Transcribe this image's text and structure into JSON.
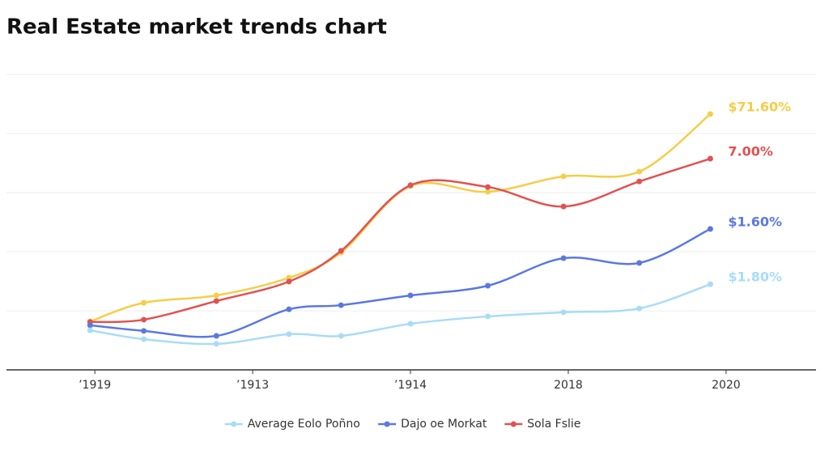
{
  "chart_data": {
    "type": "line",
    "title": "Real Estate market trends chart",
    "x": [
      -0.03,
      0.31,
      0.77,
      1.23,
      1.56,
      2.0,
      2.49,
      2.97,
      3.45,
      3.9
    ],
    "xlim": [
      -0.56,
      4.57
    ],
    "xticks": [
      {
        "value": 0,
        "label": "’1919"
      },
      {
        "value": 1,
        "label": "’1913"
      },
      {
        "value": 2,
        "label": "’1914"
      },
      {
        "value": 3,
        "label": "2018"
      },
      {
        "value": 4,
        "label": "2020"
      }
    ],
    "ylim": [
      0,
      100
    ],
    "yticks": [
      20,
      40,
      60,
      80,
      100
    ],
    "ytick_labels": false,
    "grid": true,
    "legend": "bottom",
    "series": [
      {
        "color": "#f5cd47",
        "end_label": "$71.60%",
        "values": [
          16.4,
          22.7,
          25.2,
          31.2,
          39.7,
          62.2,
          60.3,
          65.5,
          67.1,
          86.6
        ]
      },
      {
        "name": "Sola Fslie",
        "color": "#e05252",
        "end_label": "7.00%",
        "values": [
          16.2,
          17.0,
          23.3,
          29.9,
          40.3,
          62.5,
          61.9,
          55.3,
          63.8,
          71.5
        ]
      },
      {
        "name": "Dajo oe Morkat",
        "color": "#5b78e0",
        "end_label": "$1.60%",
        "values": [
          15.1,
          13.2,
          11.5,
          20.5,
          21.9,
          25.2,
          28.5,
          37.8,
          36.2,
          47.7
        ]
      },
      {
        "name": "Average Eolo Poñno",
        "color": "#a8dcf5",
        "end_label": "$1.80%",
        "values": [
          13.4,
          10.4,
          8.8,
          12.1,
          11.5,
          15.6,
          18.1,
          19.5,
          20.8,
          29.0
        ]
      }
    ]
  }
}
